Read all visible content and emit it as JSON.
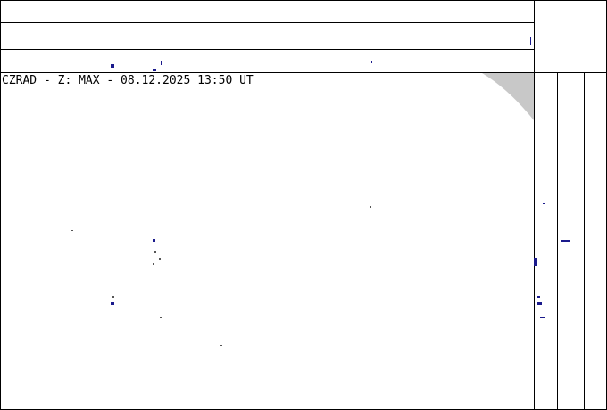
{
  "title": "CZRAD - Z: MAX - 08.12.2025 13:50 UT"
}
